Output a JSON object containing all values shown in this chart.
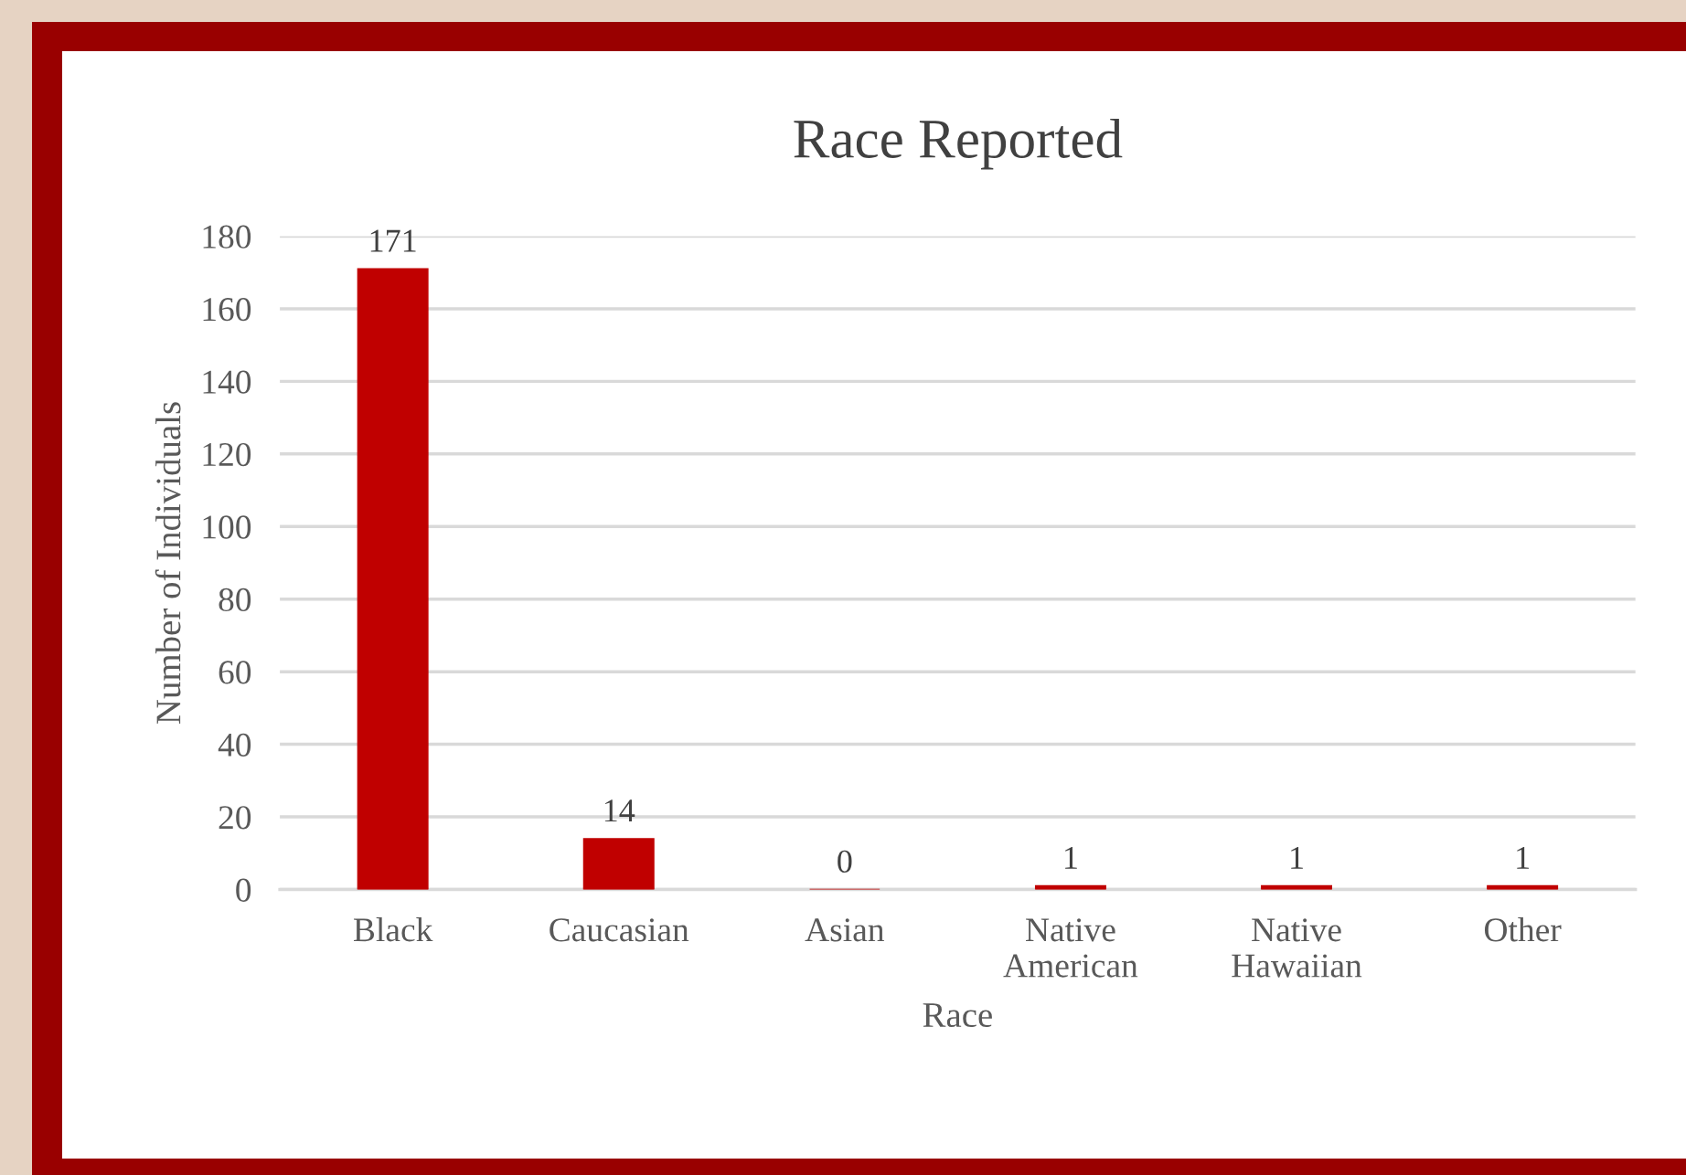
{
  "chart_data": {
    "type": "bar",
    "title": "Race Reported",
    "xlabel": "Race",
    "ylabel": "Number of Individuals",
    "categories": [
      "Black",
      "Caucasian",
      "Asian",
      "Native American",
      "Native Hawaiian",
      "Other"
    ],
    "values": [
      171,
      14,
      0,
      1,
      1,
      1
    ],
    "color": "#c00000",
    "ylim": [
      0,
      180
    ],
    "yticks": [
      0,
      20,
      40,
      60,
      80,
      100,
      120,
      140,
      160,
      180
    ],
    "grid": "y",
    "data_labels": true
  }
}
